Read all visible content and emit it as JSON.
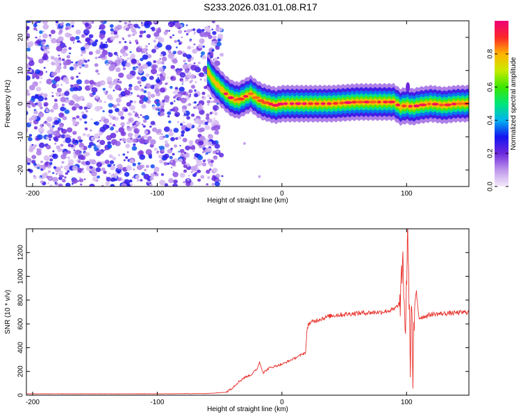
{
  "title": "S233.2026.031.01.08.R17",
  "chart_data": [
    {
      "type": "heatmap",
      "xlabel": "Height of straight line (km)",
      "ylabel": "Frequency (Hz)",
      "xlim": [
        -205,
        150
      ],
      "ylim": [
        -25,
        25
      ],
      "xticks": [
        -200,
        -100,
        0,
        100
      ],
      "yticks": [
        -20,
        -10,
        0,
        10,
        20
      ],
      "colorbar": {
        "label": "Normalized spectral amplitude",
        "range": [
          0,
          1
        ],
        "ticks": [
          0.0,
          0.2,
          0.4,
          0.6,
          0.8
        ],
        "tick_labels": [
          "0.0",
          "0.2",
          "0.4",
          "0.6",
          "0.8"
        ]
      },
      "noise_region_x": [
        -205,
        -50
      ],
      "ridge": {
        "x": [
          -60,
          -55,
          -50,
          -45,
          -40,
          -35,
          -30,
          -25,
          -20,
          -15,
          -10,
          -5,
          0,
          20,
          40,
          60,
          80,
          90,
          95,
          100,
          105,
          110,
          120,
          130,
          140,
          150
        ],
        "y": [
          10,
          7,
          5,
          3,
          1.5,
          1,
          2,
          3,
          1.5,
          0.5,
          0,
          -0.5,
          0,
          0,
          0,
          0.5,
          0.5,
          0.5,
          -1,
          -0.5,
          -1,
          -0.5,
          0,
          -0.5,
          0,
          0
        ]
      },
      "grid": false
    },
    {
      "type": "line",
      "xlabel": "Height of straight line (km)",
      "ylabel": "SNR (10 * v/v)",
      "xlim": [
        -205,
        150
      ],
      "ylim": [
        0,
        1400
      ],
      "xticks": [
        -200,
        -100,
        0,
        100
      ],
      "yticks": [
        0,
        200,
        400,
        600,
        800,
        1000,
        1200
      ],
      "series": [
        {
          "color": "#e8302a",
          "x": [
            -205,
            -150,
            -100,
            -60,
            -45,
            -40,
            -35,
            -30,
            -25,
            -20,
            -18,
            -15,
            -10,
            0,
            10,
            19,
            20,
            21,
            30,
            40,
            60,
            80,
            90,
            95,
            97,
            99,
            101,
            103,
            104,
            105,
            106,
            108,
            110,
            120,
            150
          ],
          "y": [
            12,
            12,
            12,
            14,
            25,
            60,
            110,
            150,
            170,
            220,
            280,
            190,
            230,
            260,
            310,
            360,
            520,
            600,
            640,
            670,
            690,
            700,
            720,
            780,
            1150,
            500,
            1380,
            250,
            900,
            80,
            600,
            850,
            650,
            680,
            700
          ]
        }
      ],
      "grid": false
    }
  ]
}
